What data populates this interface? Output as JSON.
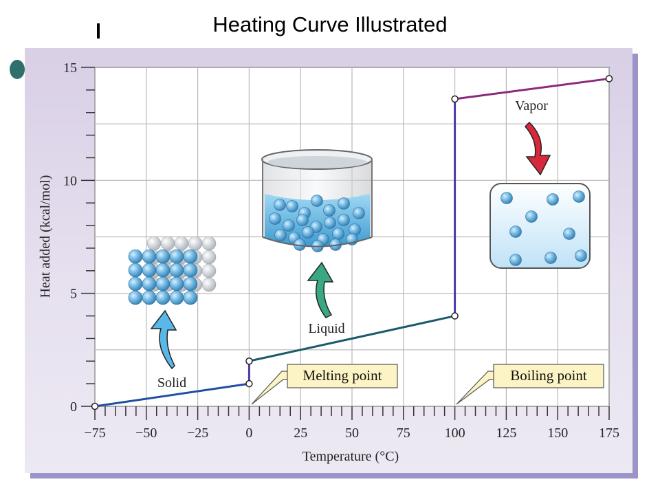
{
  "slide": {
    "title": "Heating Curve Illustrated"
  },
  "chart_data": {
    "type": "line",
    "title": "Heating Curve Illustrated",
    "xlabel": "Temperature (°C)",
    "ylabel": "Heat added (kcal/mol)",
    "xlim": [
      -75,
      175
    ],
    "ylim": [
      0,
      15
    ],
    "x_ticks": [
      -75,
      -50,
      -25,
      0,
      25,
      50,
      75,
      100,
      125,
      150,
      175
    ],
    "x_tick_labels": [
      "−75",
      "−50",
      "−25",
      "0",
      "25",
      "50",
      "75",
      "100",
      "125",
      "150",
      "175"
    ],
    "y_ticks": [
      0,
      5,
      10,
      15
    ],
    "y_tick_labels": [
      "0",
      "5",
      "10",
      "15"
    ],
    "grid": true,
    "segments": [
      {
        "phase": "solid",
        "color": "#1f4fa0",
        "points": [
          [
            -75,
            0
          ],
          [
            0,
            1
          ]
        ]
      },
      {
        "phase": "melting",
        "color": "#4a3aa8",
        "points": [
          [
            0,
            1
          ],
          [
            0,
            2
          ]
        ]
      },
      {
        "phase": "liquid",
        "color": "#1a5a6a",
        "points": [
          [
            0,
            2
          ],
          [
            100,
            4
          ]
        ]
      },
      {
        "phase": "boiling",
        "color": "#4a3aa8",
        "points": [
          [
            100,
            4
          ],
          [
            100,
            13.6
          ]
        ]
      },
      {
        "phase": "vapor",
        "color": "#8a2a7a",
        "points": [
          [
            100,
            13.6
          ],
          [
            175,
            14.5
          ]
        ]
      }
    ],
    "markers": [
      [
        -75,
        0
      ],
      [
        0,
        1
      ],
      [
        0,
        2
      ],
      [
        100,
        4
      ],
      [
        100,
        13.6
      ],
      [
        175,
        14.5
      ]
    ],
    "labels": {
      "solid": "Solid",
      "liquid": "Liquid",
      "vapor": "Vapor",
      "melting_point": "Melting point",
      "boiling_point": "Boiling point"
    },
    "label_colors": {
      "solid": "#29a8dc",
      "liquid": "#2a9a72",
      "vapor": "#c8284a"
    }
  }
}
